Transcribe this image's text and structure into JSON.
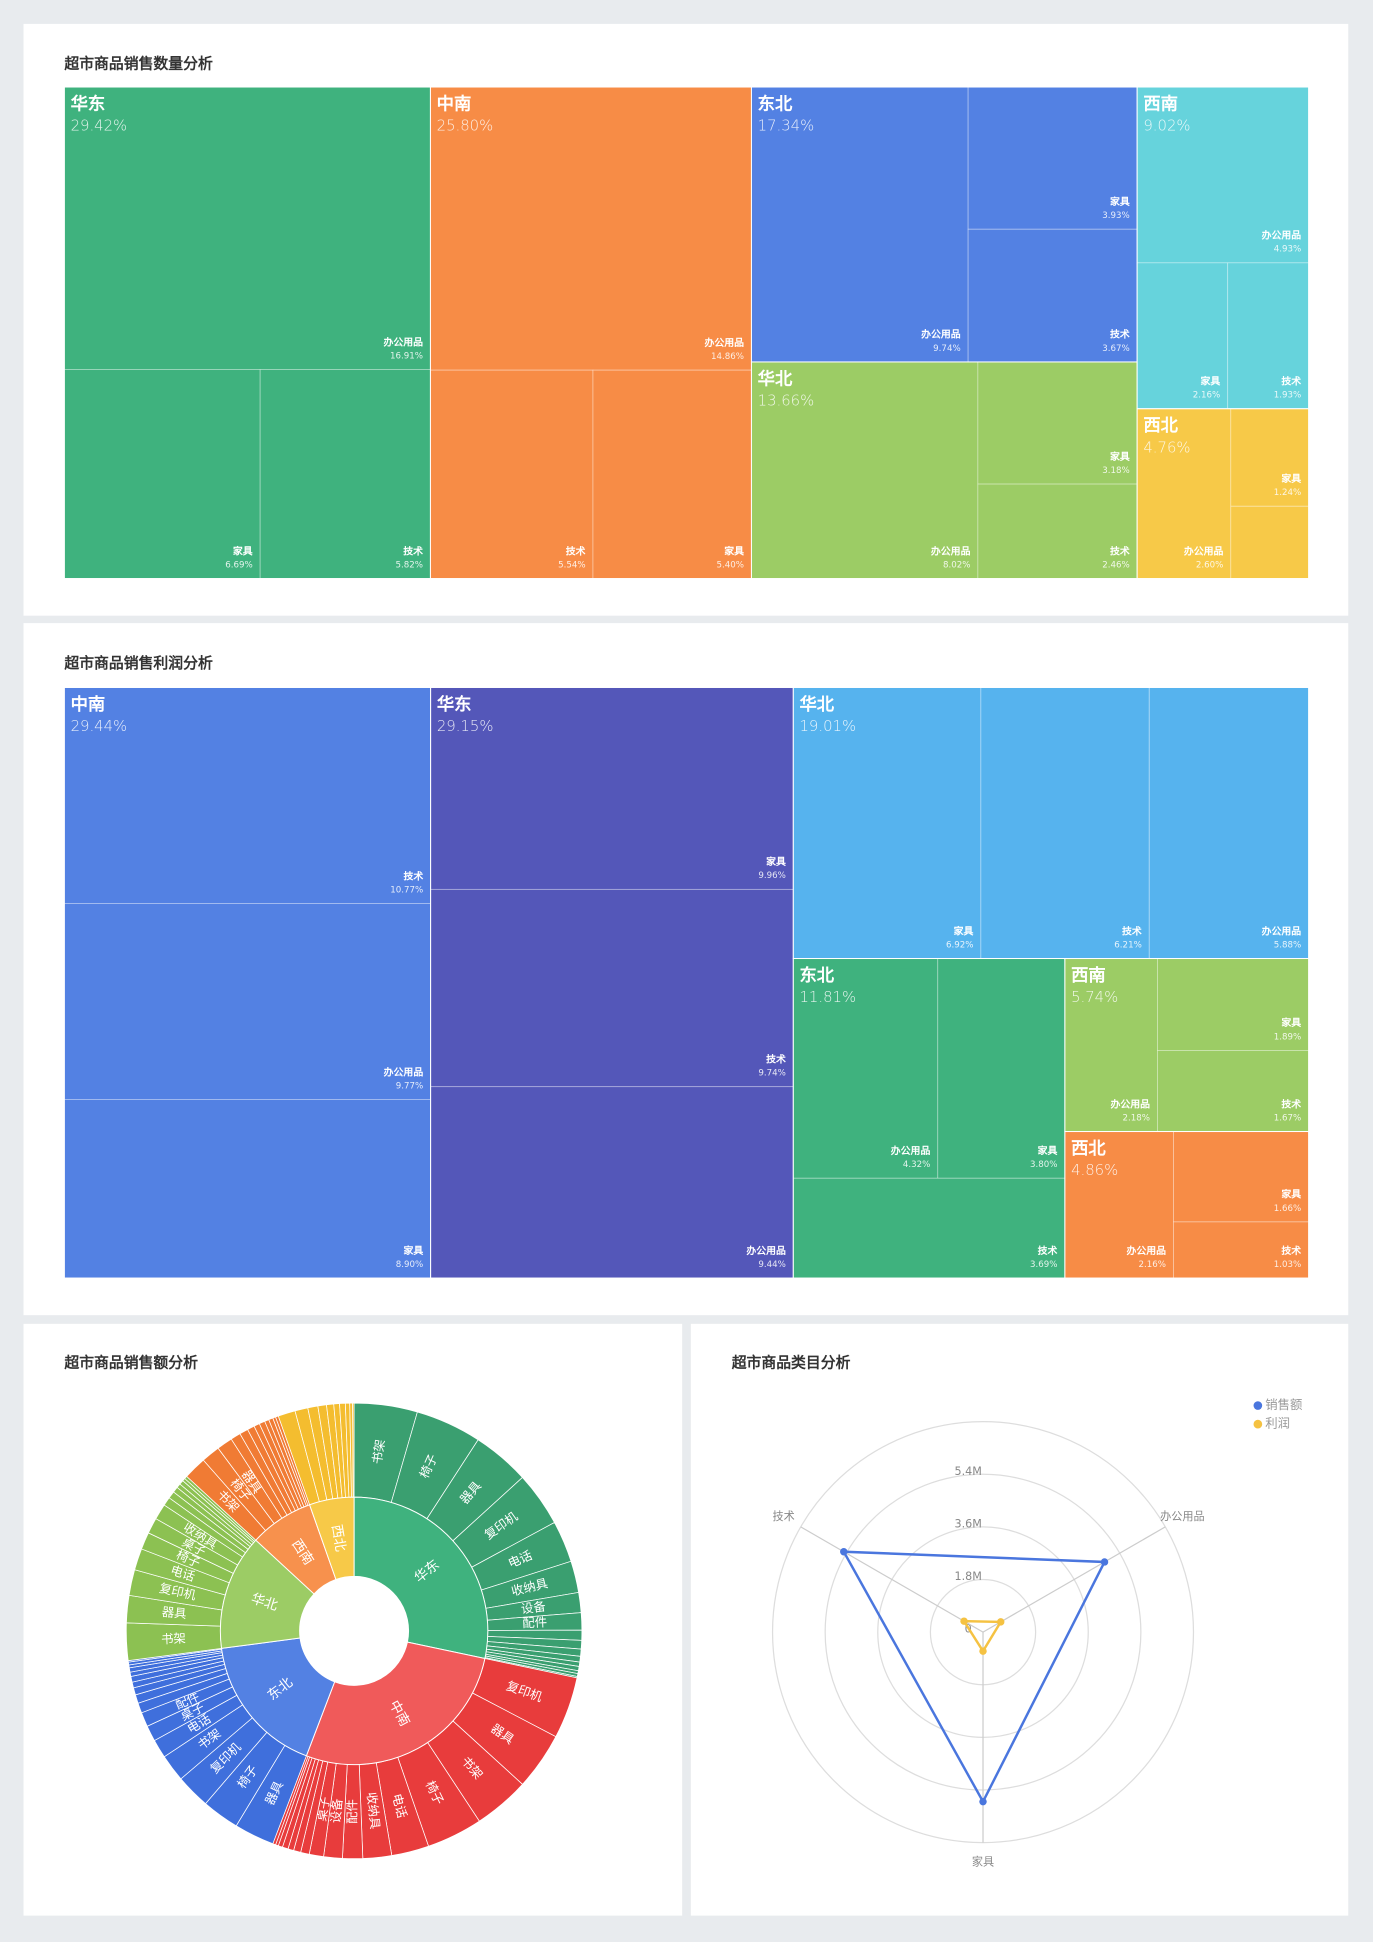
{
  "chart_data": [
    {
      "type": "treemap",
      "title": "超市商品销售数量分析",
      "series": [
        {
          "name": "华东",
          "color": "#3fb27e",
          "value": 29.42,
          "value_label": "29.42%",
          "categories": [
            "办公用品",
            "家具",
            "技术"
          ],
          "values": [
            16.91,
            6.69,
            5.82
          ],
          "value_labels": [
            "16.91%",
            "6.69%",
            "5.82%"
          ]
        },
        {
          "name": "中南",
          "color": "#f78c46",
          "value": 25.8,
          "value_label": "25.80%",
          "categories": [
            "办公用品",
            "技术",
            "家具"
          ],
          "values": [
            14.86,
            5.54,
            5.4
          ],
          "value_labels": [
            "14.86%",
            "5.54%",
            "5.40%"
          ]
        },
        {
          "name": "东北",
          "color": "#5381e3",
          "value": 17.34,
          "value_label": "17.34%",
          "categories": [
            "办公用品",
            "家具",
            "技术"
          ],
          "values": [
            9.74,
            3.93,
            3.67
          ],
          "value_labels": [
            "9.74%",
            "3.93%",
            "3.67%"
          ]
        },
        {
          "name": "华北",
          "color": "#9ccc65",
          "value": 13.66,
          "value_label": "13.66%",
          "categories": [
            "办公用品",
            "家具",
            "技术"
          ],
          "values": [
            8.02,
            3.18,
            2.46
          ],
          "value_labels": [
            "8.02%",
            "3.18%",
            "2.46%"
          ]
        },
        {
          "name": "西南",
          "color": "#66d3dc",
          "value": 9.02,
          "value_label": "9.02%",
          "categories": [
            "办公用品",
            "家具",
            "技术"
          ],
          "values": [
            4.93,
            2.16,
            1.93
          ],
          "value_labels": [
            "4.93%",
            "2.16%",
            "1.93%"
          ]
        },
        {
          "name": "西北",
          "color": "#f7c948",
          "value": 4.76,
          "value_label": "4.76%",
          "categories": [
            "办公用品",
            "家具",
            null
          ],
          "values": [
            2.6,
            1.24,
            0.92
          ],
          "value_labels": [
            "2.60%",
            "1.24%",
            null
          ]
        }
      ]
    },
    {
      "type": "treemap",
      "title": "超市商品销售利润分析",
      "series": [
        {
          "name": "中南",
          "color": "#5381e3",
          "value": 29.44,
          "value_label": "29.44%",
          "categories": [
            "技术",
            "办公用品",
            "家具"
          ],
          "values": [
            10.77,
            9.77,
            8.9
          ],
          "value_labels": [
            "10.77%",
            "9.77%",
            "8.90%"
          ]
        },
        {
          "name": "华东",
          "color": "#5457b9",
          "value": 29.15,
          "value_label": "29.15%",
          "categories": [
            "家具",
            "技术",
            "办公用品"
          ],
          "values": [
            9.96,
            9.74,
            9.44
          ],
          "value_labels": [
            "9.96%",
            "9.74%",
            "9.44%"
          ]
        },
        {
          "name": "华北",
          "color": "#56b3ee",
          "value": 19.01,
          "value_label": "19.01%",
          "categories": [
            "家具",
            "技术",
            "办公用品"
          ],
          "values": [
            6.92,
            6.21,
            5.88
          ],
          "value_labels": [
            "6.92%",
            "6.21%",
            "5.88%"
          ]
        },
        {
          "name": "东北",
          "color": "#3fb27e",
          "value": 11.81,
          "value_label": "11.81%",
          "categories": [
            "办公用品",
            "家具",
            "技术"
          ],
          "values": [
            4.32,
            3.8,
            3.69
          ],
          "value_labels": [
            "4.32%",
            "3.80%",
            "3.69%"
          ]
        },
        {
          "name": "西南",
          "color": "#9ccc65",
          "value": 5.74,
          "value_label": "5.74%",
          "categories": [
            "办公用品",
            "家具",
            "技术"
          ],
          "values": [
            2.18,
            1.89,
            1.67
          ],
          "value_labels": [
            "2.18%",
            "1.89%",
            "1.67%"
          ]
        },
        {
          "name": "西北",
          "color": "#f78c46",
          "value": 4.86,
          "value_label": "4.86%",
          "categories": [
            "办公用品",
            "家具",
            "技术"
          ],
          "values": [
            2.16,
            1.66,
            1.03
          ],
          "value_labels": [
            "2.16%",
            "1.66%",
            "1.03%"
          ]
        }
      ]
    },
    {
      "type": "sunburst",
      "title": "超市商品销售额分析",
      "series": [
        {
          "name": "华东",
          "color": "#3fb27e",
          "child_color": "#3a9f70",
          "categories": [
            "书架",
            "椅子",
            "器具",
            "复印机",
            "电话",
            "收纳具",
            "设备",
            "配件",
            null,
            null,
            null,
            null,
            null,
            null,
            null,
            null,
            null
          ],
          "values": [
            4.4,
            4.6,
            4.0,
            3.8,
            2.9,
            2.2,
            1.4,
            1.2,
            0.7,
            0.6,
            0.5,
            0.4,
            0.3,
            0.3,
            0.2,
            0.2,
            0.1
          ]
        },
        {
          "name": "中南",
          "color": "#f05a5a",
          "child_color": "#e83c3c",
          "categories": [
            "复印机",
            "器具",
            "书架",
            "椅子",
            "电话",
            "收纳具",
            "配件",
            "设备",
            "桌子",
            null,
            null,
            null,
            null,
            null,
            null,
            null
          ],
          "values": [
            4.3,
            4.0,
            3.9,
            3.9,
            2.6,
            2.0,
            1.4,
            1.3,
            1.0,
            0.6,
            0.5,
            0.4,
            0.4,
            0.3,
            0.2,
            0.2
          ]
        },
        {
          "name": "东北",
          "color": "#5381e3",
          "child_color": "#3f6fdc",
          "categories": [
            "器具",
            "椅子",
            "复印机",
            "书架",
            "电话",
            "桌子",
            "配件",
            null,
            null,
            null,
            null,
            null,
            null,
            null,
            null,
            null,
            null
          ],
          "values": [
            2.8,
            2.6,
            2.4,
            1.9,
            1.3,
            1.1,
            1.0,
            0.7,
            0.6,
            0.5,
            0.4,
            0.4,
            0.3,
            0.3,
            0.2,
            0.2,
            0.1
          ]
        },
        {
          "name": "华北",
          "color": "#9ccc65",
          "child_color": "#8cc152",
          "categories": [
            "书架",
            "器具",
            "复印机",
            "电话",
            "椅子",
            "桌子",
            "收纳具",
            null,
            null,
            null,
            null,
            null,
            null,
            null
          ],
          "values": [
            2.6,
            1.9,
            1.8,
            1.5,
            1.2,
            1.1,
            1.1,
            0.6,
            0.5,
            0.4,
            0.3,
            0.3,
            0.2,
            0.2
          ]
        },
        {
          "name": "西南",
          "color": "#f7914d",
          "child_color": "#f07b34",
          "categories": [
            "书架",
            "椅子",
            "器具",
            null,
            null,
            null,
            null,
            null,
            null,
            null,
            null,
            null
          ],
          "values": [
            1.6,
            1.3,
            1.1,
            0.7,
            0.6,
            0.5,
            0.4,
            0.4,
            0.3,
            0.3,
            0.2,
            0.2
          ]
        },
        {
          "name": "西北",
          "color": "#f7c948",
          "child_color": "#f4bd2f",
          "categories": [
            null,
            null,
            null,
            null,
            null,
            null,
            null,
            null,
            null,
            null
          ],
          "values": [
            1.2,
            0.9,
            0.7,
            0.6,
            0.5,
            0.4,
            0.4,
            0.3,
            0.2,
            0.1
          ]
        }
      ]
    },
    {
      "type": "radar",
      "title": "超市商品类目分析",
      "categories": [
        "办公用品",
        "家具",
        "技术"
      ],
      "series": [
        {
          "name": "销售额",
          "color": "#4a76de",
          "values": [
            4800000,
            5800000,
            5500000
          ]
        },
        {
          "name": "利润",
          "color": "#f5c242",
          "values": [
            700000,
            650000,
            750000
          ]
        }
      ],
      "ylim": [
        0,
        7200000
      ],
      "yticks": [
        0,
        {
          "value": 1800000,
          "label": "1.8M"
        },
        {
          "value": 3600000,
          "label": "3.6M"
        },
        {
          "value": 5400000,
          "label": "5.4M"
        }
      ],
      "legend": "top-right"
    }
  ]
}
